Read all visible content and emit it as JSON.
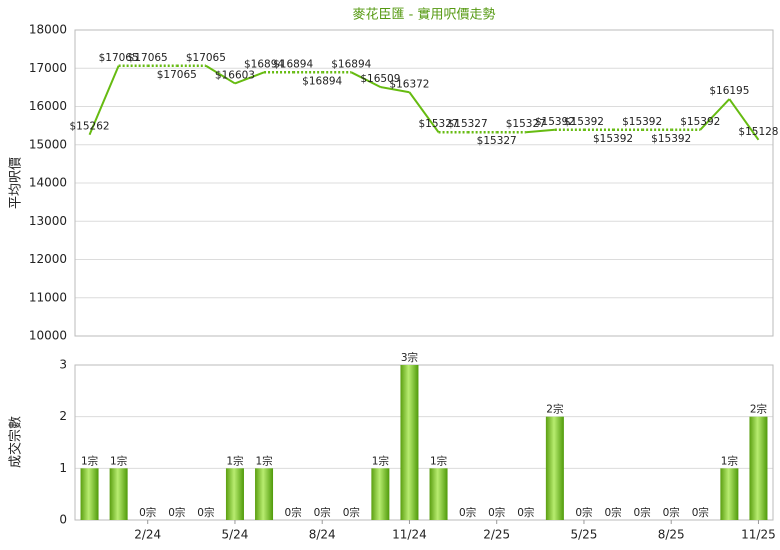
{
  "chart_data": [
    {
      "type": "line",
      "title": "麥花臣匯 - 實用呎價走勢",
      "y_label": "平均呎價",
      "color": "#66bb11",
      "values": [
        15262,
        17065,
        17065,
        17065,
        17065,
        16603,
        16894,
        16894,
        16894,
        16894,
        16509,
        16372,
        15327,
        15327,
        15327,
        15327,
        15392,
        15392,
        15392,
        15392,
        15392,
        15392,
        16195,
        15128
      ],
      "value_labels": [
        "$15262",
        "$17065",
        "$17065",
        "$17065",
        "$17065",
        "$16603",
        "$16894",
        "$16894",
        "$16894",
        "$16894",
        "$16509",
        "$16372",
        "$15327",
        "$15327",
        "$15327",
        "$15327",
        "$15392",
        "$15392",
        "$15392",
        "$15392",
        "$15392",
        "$15392",
        "$16195",
        "$15128"
      ],
      "ylim": [
        10000,
        18000
      ],
      "yticks": [
        10000,
        11000,
        12000,
        13000,
        14000,
        15000,
        16000,
        17000,
        18000
      ],
      "grid": true
    },
    {
      "type": "bar",
      "y_label": "成交宗數",
      "color": "#66bb11",
      "categories": [
        null,
        null,
        "2/24",
        null,
        null,
        "5/24",
        null,
        null,
        "8/24",
        null,
        null,
        "11/24",
        null,
        null,
        "2/25",
        null,
        null,
        "5/25",
        null,
        null,
        "8/25",
        null,
        null,
        "11/25"
      ],
      "values": [
        1,
        1,
        0,
        0,
        0,
        1,
        1,
        0,
        0,
        0,
        1,
        3,
        1,
        0,
        0,
        0,
        2,
        0,
        0,
        0,
        0,
        0,
        1,
        2
      ],
      "value_labels": [
        "1宗",
        "1宗",
        "0宗",
        "0宗",
        "0宗",
        "1宗",
        "1宗",
        "0宗",
        "0宗",
        "0宗",
        "1宗",
        "3宗",
        "1宗",
        "0宗",
        "0宗",
        "0宗",
        "2宗",
        "0宗",
        "0宗",
        "0宗",
        "0宗",
        "0宗",
        "1宗",
        "2宗"
      ],
      "ylim": [
        0,
        3
      ],
      "yticks": [
        0,
        1,
        2,
        3
      ],
      "grid": true
    }
  ]
}
